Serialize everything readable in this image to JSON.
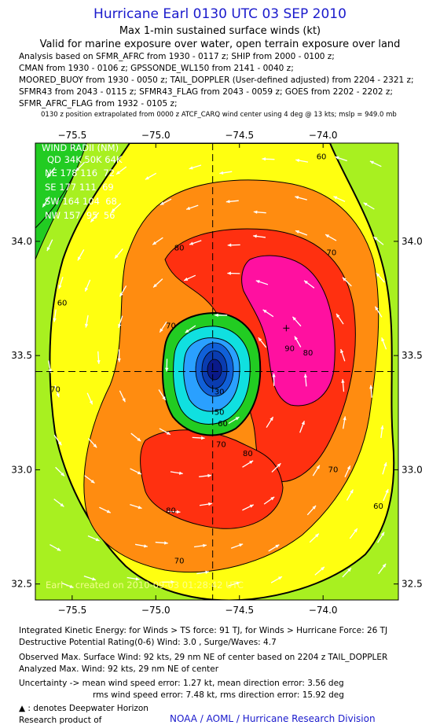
{
  "header": {
    "title": "Hurricane Earl 0130 UTC 03 SEP 2010",
    "subtitle": "Max 1-min sustained surface winds (kt)",
    "valid_note": "Valid for marine exposure over water, open terrain exposure over land",
    "analysis_lines": [
      "Analysis based on SFMR_AFRC from 1930 - 0117 z; SHIP from 2000 - 0100 z;",
      "CMAN from 1930 - 0106 z; GPSSONDE_WL150 from 2141 - 0040 z;",
      "MOORED_BUOY from 1930 - 0050 z; TAIL_DOPPLER (User-defined adjusted) from 2204 - 2321 z;",
      "SFMR43 from 2043 - 0115 z; SFMR43_FLAG from 2043 - 0059 z; GOES from 2202 - 2202 z;",
      "SFMR_AFRC_FLAG from 1932 - 0105 z;"
    ],
    "position_note": "0130 z position extrapolated from 0000 z ATCF_CARQ wind center using 4 deg @ 13 kts; mslp = 949.0 mb"
  },
  "wind_radii": {
    "title": "WIND RADII (NM)",
    "header": "QD 34K 50K 64K",
    "rows": [
      "NE 178 116  72",
      "SE 177 111  69",
      "SW 164 104  68",
      "NW 157  95  56"
    ]
  },
  "watermark": "Earl -- created on 2010-09-03 01:28:42 UTC",
  "chart_data": {
    "type": "contour",
    "xlim": [
      -75.72,
      -73.55
    ],
    "ylim": [
      32.43,
      34.43
    ],
    "xticks": [
      -75.5,
      -75.0,
      -74.5,
      -74.0
    ],
    "xtick_labels": [
      "−75.5",
      "−75.0",
      "−74.5",
      "−74.0"
    ],
    "yticks": [
      32.5,
      33.0,
      33.5,
      34.0
    ],
    "ytick_labels": [
      "32.5",
      "33.0",
      "33.5",
      "34.0"
    ],
    "center": {
      "lon": -74.66,
      "lat": 33.43
    },
    "max_wind_marker": {
      "lon": -74.22,
      "lat": 33.62
    },
    "contour_labels": [
      {
        "text": "80",
        "lon": -74.86,
        "lat": 33.96
      },
      {
        "text": "70",
        "lon": -74.91,
        "lat": 33.62
      },
      {
        "text": "90",
        "lon": -74.2,
        "lat": 33.52
      },
      {
        "text": "80",
        "lon": -74.09,
        "lat": 33.5
      },
      {
        "text": "60",
        "lon": -75.56,
        "lat": 33.72
      },
      {
        "text": "70",
        "lon": -75.6,
        "lat": 33.34
      },
      {
        "text": "70",
        "lon": -73.95,
        "lat": 33.94
      },
      {
        "text": "60",
        "lon": -74.01,
        "lat": 34.36
      },
      {
        "text": "70",
        "lon": -74.61,
        "lat": 33.1
      },
      {
        "text": "80",
        "lon": -74.45,
        "lat": 33.06
      },
      {
        "text": "80",
        "lon": -74.91,
        "lat": 32.81
      },
      {
        "text": "70",
        "lon": -74.86,
        "lat": 32.59
      },
      {
        "text": "70",
        "lon": -73.94,
        "lat": 32.99
      },
      {
        "text": "60",
        "lon": -73.67,
        "lat": 32.83
      },
      {
        "text": "60",
        "lon": -74.6,
        "lat": 33.19
      },
      {
        "text": "50",
        "lon": -74.62,
        "lat": 33.24
      },
      {
        "text": "30",
        "lon": -74.62,
        "lat": 33.33
      }
    ],
    "levels": [
      30,
      40,
      50,
      60,
      70,
      80,
      90
    ],
    "colors": {
      "very_low": "#0a1a8a",
      "low": "#2aa0ff",
      "cyan": "#10e0e0",
      "green": "#22cc22",
      "lime": "#a8f020",
      "yellow": "#ffff10",
      "orange": "#ff8c10",
      "red": "#ff3010",
      "magenta": "#ff10a0"
    }
  },
  "footer": {
    "ike": "Integrated Kinetic Energy:  for Winds > TS force: 91 TJ,  for Winds > Hurricane Force: 26 TJ",
    "dpr": "Destructive Potential Rating(0-6)   Wind: 3.0 , Surge/Waves: 4.7",
    "observed": "Observed Max. Surface Wind: 92 kts, 29 nm NE of center based on 2204 z TAIL_DOPPLER",
    "analyzed": "Analyzed Max. Wind: 92 kts, 29 nm NE of center",
    "uncert1": "Uncertainty -> mean wind speed error: 1.27 kt,   mean direction error: 3.56 deg",
    "uncert2": "rms wind speed error: 7.48 kt,   rms direction error: 15.92 deg",
    "legend": ": denotes Deepwater Horizon",
    "research": "Research product of",
    "noaa": "NOAA / AOML / Hurricane Research Division"
  }
}
